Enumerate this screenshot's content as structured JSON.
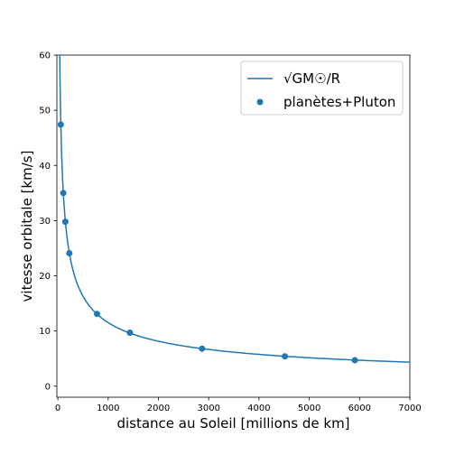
{
  "chart_data": {
    "type": "line",
    "title": "",
    "xlabel": "distance au Soleil [millions de km]",
    "ylabel": "vitesse orbitale [km/s]",
    "xlim": [
      -20,
      7000
    ],
    "ylim": [
      -2,
      60
    ],
    "x_ticks": [
      0,
      1000,
      2000,
      3000,
      4000,
      5000,
      6000,
      7000
    ],
    "y_ticks": [
      0,
      10,
      20,
      30,
      40,
      50,
      60
    ],
    "grid": false,
    "legend_position": "top-right",
    "colors": {
      "series": "#1f77b4"
    },
    "series": [
      {
        "name": "√GM☉/R",
        "kind": "line",
        "model": {
          "formula": "v = sqrt(GM/R)",
          "GM_km3_s2": 132700000000.0,
          "R_unit_km": 1000000
        },
        "x_range": [
          5,
          7000
        ]
      },
      {
        "name": "planètes+Pluton",
        "kind": "scatter",
        "x": [
          57.9,
          108.2,
          149.6,
          227.9,
          778.5,
          1432,
          2867,
          4515,
          5906
        ],
        "y": [
          47.4,
          35.0,
          29.8,
          24.1,
          13.1,
          9.7,
          6.8,
          5.4,
          4.7
        ]
      }
    ]
  }
}
